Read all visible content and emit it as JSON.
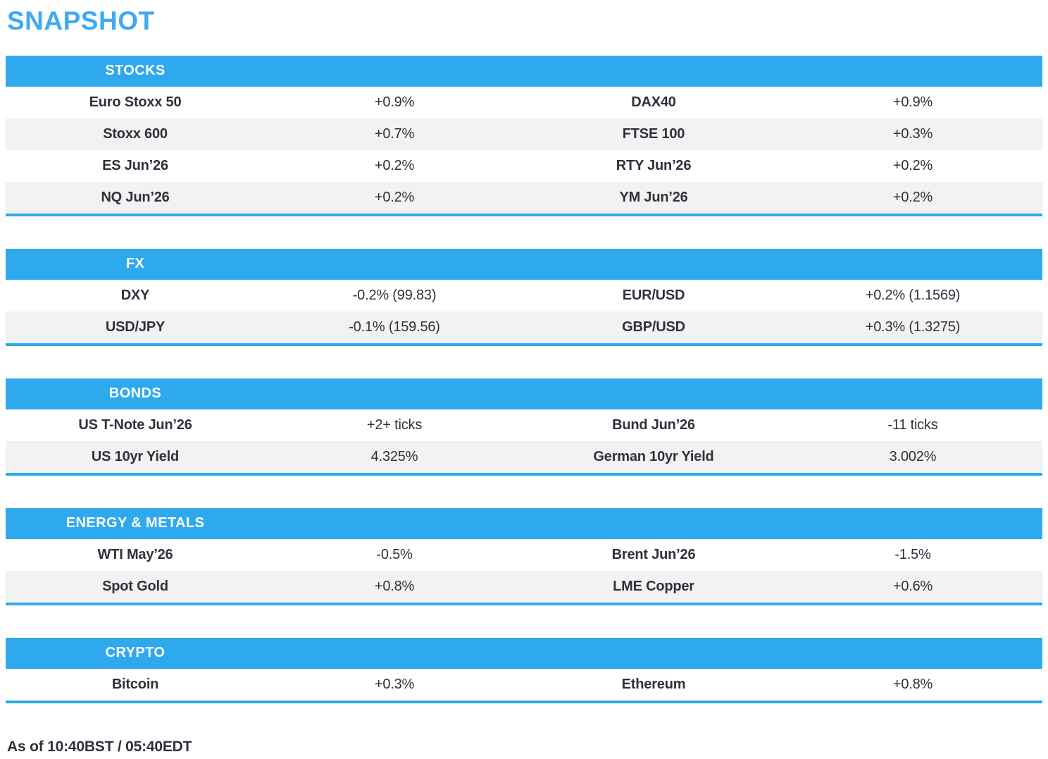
{
  "title": "SNAPSHOT",
  "colors": {
    "accent": "#2FA9EE",
    "title_blue": "#3FA9F5",
    "row_alt": "#F2F2F2",
    "text": "#2D323C",
    "header_text": "#FFFFFF"
  },
  "sections": [
    {
      "id": "stocks",
      "header": "STOCKS",
      "rows": [
        [
          "Euro Stoxx 50",
          "+0.9%",
          "DAX40",
          "+0.9%"
        ],
        [
          "Stoxx 600",
          "+0.7%",
          "FTSE 100",
          "+0.3%"
        ],
        [
          "ES Jun’26",
          "+0.2%",
          "RTY Jun’26",
          "+0.2%"
        ],
        [
          "NQ Jun’26",
          "+0.2%",
          "YM Jun’26",
          "+0.2%"
        ]
      ]
    },
    {
      "id": "fx",
      "header": "FX",
      "rows": [
        [
          "DXY",
          "-0.2% (99.83)",
          "EUR/USD",
          "+0.2% (1.1569)"
        ],
        [
          "USD/JPY",
          "-0.1% (159.56)",
          "GBP/USD",
          "+0.3% (1.3275)"
        ]
      ]
    },
    {
      "id": "bonds",
      "header": "BONDS",
      "rows": [
        [
          "US T-Note Jun’26",
          "+2+ ticks",
          "Bund Jun’26",
          "-11 ticks"
        ],
        [
          "US 10yr Yield",
          "4.325%",
          "German 10yr Yield",
          "3.002%"
        ]
      ]
    },
    {
      "id": "energy-metals",
      "header": "ENERGY & METALS",
      "rows": [
        [
          "WTI May’26",
          "-0.5%",
          "Brent Jun’26",
          "-1.5%"
        ],
        [
          "Spot Gold",
          "+0.8%",
          "LME Copper",
          "+0.6%"
        ]
      ]
    },
    {
      "id": "crypto",
      "header": "CRYPTO",
      "rows": [
        [
          "Bitcoin",
          "+0.3%",
          "Ethereum",
          "+0.8%"
        ]
      ]
    }
  ],
  "footer": {
    "as_of": "As of 10:40BST / 05:40EDT"
  }
}
